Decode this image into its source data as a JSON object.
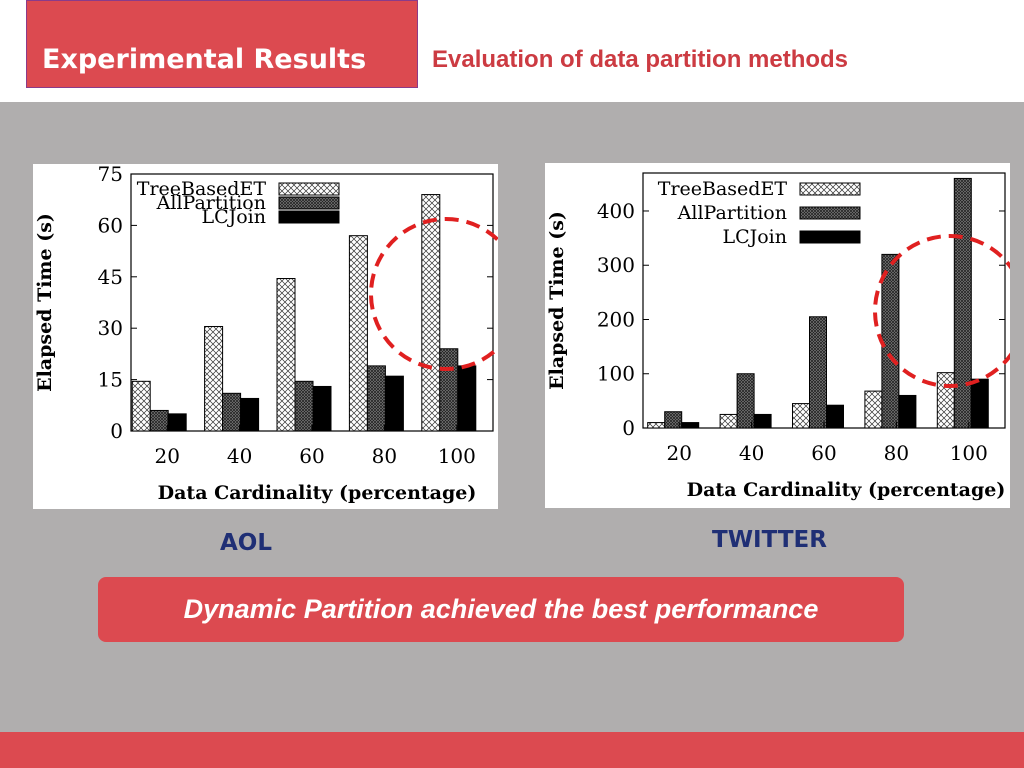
{
  "header": {
    "title": "Experimental Results",
    "subtitle": "Evaluation of data partition methods"
  },
  "colors": {
    "accent": "#dc4a50",
    "background": "#b0aeae",
    "label_blue": "#1f2f75",
    "highlight_circle": "#e02020"
  },
  "banner": {
    "text": "Dynamic Partition achieved the best performance"
  },
  "charts": {
    "aol": {
      "dataset_label": "AOL",
      "ylabel": "Elapsed Time (s)",
      "xlabel": "Data Cardinality (percentage)",
      "yticks": [
        "0",
        "15",
        "30",
        "45",
        "60",
        "75"
      ],
      "legend": [
        "TreeBasedET",
        "AllPartition",
        "LCJoin"
      ]
    },
    "twitter": {
      "dataset_label": "TWITTER",
      "ylabel": "Elapsed Time (s)",
      "xlabel": "Data Cardinality (percentage)",
      "yticks": [
        "0",
        "100",
        "200",
        "300",
        "400"
      ],
      "legend": [
        "TreeBasedET",
        "AllPartition",
        "LCJoin"
      ]
    }
  },
  "chart_data": [
    {
      "type": "bar",
      "categories": [
        "20",
        "40",
        "60",
        "80",
        "100"
      ],
      "series": [
        {
          "name": "TreeBasedET",
          "values": [
            14.5,
            30.5,
            44.5,
            57,
            69
          ]
        },
        {
          "name": "AllPartition",
          "values": [
            6,
            11,
            14.5,
            19,
            24
          ]
        },
        {
          "name": "LCJoin",
          "values": [
            5,
            9.5,
            13,
            16,
            19
          ]
        }
      ],
      "title": "",
      "xlabel": "Data Cardinality (percentage)",
      "ylabel": "Elapsed Time (s)",
      "ylim": [
        0,
        75
      ],
      "legend": "top-left",
      "grid": false
    },
    {
      "type": "bar",
      "categories": [
        "20",
        "40",
        "60",
        "80",
        "100"
      ],
      "series": [
        {
          "name": "TreeBasedET",
          "values": [
            10,
            25,
            45,
            68,
            102
          ]
        },
        {
          "name": "AllPartition",
          "values": [
            30,
            100,
            205,
            320,
            460
          ]
        },
        {
          "name": "LCJoin",
          "values": [
            10,
            25,
            42,
            60,
            90
          ]
        }
      ],
      "title": "",
      "xlabel": "Data Cardinality (percentage)",
      "ylabel": "Elapsed Time (s)",
      "ylim": [
        0,
        470
      ],
      "legend": "top-left",
      "grid": false
    }
  ]
}
